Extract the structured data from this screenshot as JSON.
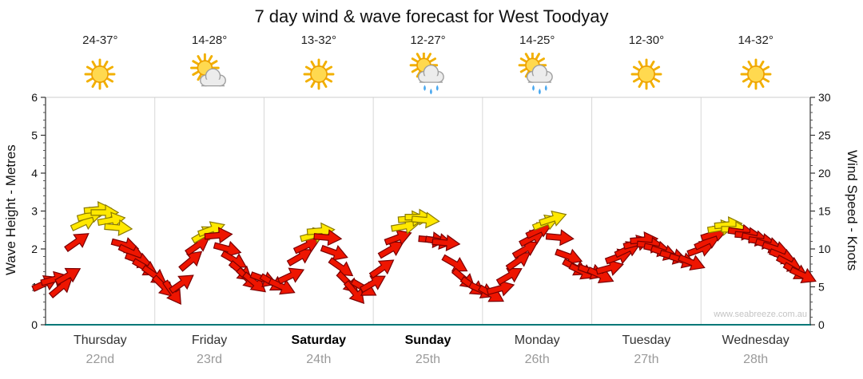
{
  "title": "7 day wind & wave forecast for West Toodyay",
  "watermark": "www.seabreeze.com.au",
  "days": [
    {
      "name": "Thursday",
      "date": "22nd",
      "temp": "24-37°",
      "icon": "sun",
      "bold": false
    },
    {
      "name": "Friday",
      "date": "23rd",
      "temp": "14-28°",
      "icon": "sun-cloud",
      "bold": false
    },
    {
      "name": "Saturday",
      "date": "24th",
      "temp": "13-32°",
      "icon": "sun",
      "bold": true
    },
    {
      "name": "Sunday",
      "date": "25th",
      "temp": "12-27°",
      "icon": "sun-rain",
      "bold": true
    },
    {
      "name": "Monday",
      "date": "26th",
      "temp": "14-25°",
      "icon": "sun-rain",
      "bold": false
    },
    {
      "name": "Tuesday",
      "date": "27th",
      "temp": "12-30°",
      "icon": "sun",
      "bold": false
    },
    {
      "name": "Wednesday",
      "date": "28th",
      "temp": "14-32°",
      "icon": "sun",
      "bold": false
    }
  ],
  "chart_data": {
    "type": "wind-arrows",
    "x_axis": {
      "unit": "hours",
      "range": [
        0,
        168
      ],
      "gridlines_per_day": true
    },
    "wave_axis": {
      "label": "Wave Height - Metres",
      "range": [
        0,
        6
      ],
      "ticks": [
        0,
        1,
        2,
        3,
        4,
        5,
        6
      ]
    },
    "wind_axis": {
      "label": "Wind Speed - Knots",
      "range": [
        0,
        30
      ],
      "ticks": [
        0,
        5,
        10,
        15,
        20,
        25,
        30
      ]
    },
    "arrow_colors": {
      "red": "#ee1500",
      "yellow": "#ffe800"
    },
    "arrow_outline": {
      "red": "#7a0000",
      "yellow": "#8a7a00"
    },
    "arrows": [
      [
        0,
        5.5,
        -25,
        "r"
      ],
      [
        2,
        6,
        -15,
        "r"
      ],
      [
        3.5,
        5,
        -40,
        "r"
      ],
      [
        5,
        6.5,
        -30,
        "r"
      ],
      [
        7,
        11,
        -35,
        "r"
      ],
      [
        8.5,
        13.5,
        -25,
        "y"
      ],
      [
        10,
        14.5,
        -15,
        "y"
      ],
      [
        11.5,
        15.2,
        -5,
        "y"
      ],
      [
        13,
        14.8,
        0,
        "y"
      ],
      [
        14.5,
        13.8,
        -10,
        "y"
      ],
      [
        16,
        12.8,
        5,
        "y"
      ],
      [
        17.5,
        10.5,
        15,
        "r"
      ],
      [
        19,
        9.5,
        25,
        "r"
      ],
      [
        20.5,
        8.5,
        20,
        "r"
      ],
      [
        22,
        7.5,
        30,
        "r"
      ],
      [
        24,
        6.5,
        35,
        "r"
      ],
      [
        26,
        5,
        45,
        "r"
      ],
      [
        28,
        4.2,
        55,
        "r"
      ],
      [
        30,
        5.5,
        -35,
        "r"
      ],
      [
        32,
        8.5,
        -40,
        "r"
      ],
      [
        33.5,
        10.5,
        -35,
        "r"
      ],
      [
        35,
        12,
        -30,
        "y"
      ],
      [
        36.5,
        12.6,
        -20,
        "y"
      ],
      [
        38,
        11.8,
        -5,
        "r"
      ],
      [
        40,
        10,
        15,
        "r"
      ],
      [
        41.5,
        8.5,
        30,
        "r"
      ],
      [
        43,
        7,
        40,
        "r"
      ],
      [
        44.5,
        6,
        45,
        "r"
      ],
      [
        46,
        5.5,
        40,
        "r"
      ],
      [
        48,
        6,
        20,
        "r"
      ],
      [
        50,
        5.5,
        30,
        "r"
      ],
      [
        52,
        5,
        25,
        "r"
      ],
      [
        54,
        6.5,
        -25,
        "r"
      ],
      [
        56,
        9,
        -30,
        "r"
      ],
      [
        57.5,
        10.5,
        -25,
        "r"
      ],
      [
        59,
        11.8,
        -15,
        "y"
      ],
      [
        60.5,
        12.4,
        -5,
        "y"
      ],
      [
        62,
        11.5,
        5,
        "r"
      ],
      [
        63.5,
        9.5,
        20,
        "r"
      ],
      [
        65,
        7.5,
        35,
        "r"
      ],
      [
        66.5,
        5.5,
        45,
        "r"
      ],
      [
        68,
        4.2,
        50,
        "r"
      ],
      [
        70,
        4.8,
        30,
        "r"
      ],
      [
        72,
        5.5,
        -30,
        "r"
      ],
      [
        74,
        7.5,
        -35,
        "r"
      ],
      [
        76,
        10,
        -30,
        "r"
      ],
      [
        77.5,
        11.5,
        -20,
        "r"
      ],
      [
        79,
        13,
        -10,
        "y"
      ],
      [
        80.5,
        14,
        -5,
        "y"
      ],
      [
        82,
        14.2,
        0,
        "y"
      ],
      [
        83.5,
        13.8,
        5,
        "y"
      ],
      [
        85,
        11.2,
        5,
        "r"
      ],
      [
        86.5,
        11,
        10,
        "r"
      ],
      [
        88,
        10.8,
        5,
        "r"
      ],
      [
        90,
        8,
        30,
        "r"
      ],
      [
        92,
        6,
        40,
        "r"
      ],
      [
        94,
        5,
        35,
        "r"
      ],
      [
        96,
        4.5,
        25,
        "r"
      ],
      [
        98,
        4,
        30,
        "r"
      ],
      [
        100,
        4.8,
        -15,
        "r"
      ],
      [
        102,
        6.5,
        -30,
        "r"
      ],
      [
        104,
        8.5,
        -35,
        "r"
      ],
      [
        105.5,
        10,
        -30,
        "r"
      ],
      [
        107,
        11.5,
        -28,
        "r"
      ],
      [
        108.5,
        12.5,
        -25,
        "r"
      ],
      [
        110,
        13.5,
        -22,
        "y"
      ],
      [
        111.5,
        14,
        -18,
        "y"
      ],
      [
        113,
        11.5,
        5,
        "r"
      ],
      [
        115,
        9,
        20,
        "r"
      ],
      [
        116.5,
        7.5,
        28,
        "r"
      ],
      [
        118,
        7,
        25,
        "r"
      ],
      [
        120,
        7,
        20,
        "r"
      ],
      [
        122,
        6.5,
        25,
        "r"
      ],
      [
        124,
        7.5,
        -15,
        "r"
      ],
      [
        126,
        9,
        -20,
        "r"
      ],
      [
        128,
        10,
        -25,
        "r"
      ],
      [
        130,
        10.8,
        -15,
        "r"
      ],
      [
        131.5,
        11.2,
        -5,
        "r"
      ],
      [
        133,
        10.5,
        5,
        "r"
      ],
      [
        134.5,
        10,
        12,
        "r"
      ],
      [
        136,
        9.5,
        18,
        "r"
      ],
      [
        138,
        9,
        15,
        "r"
      ],
      [
        140,
        8.5,
        18,
        "r"
      ],
      [
        142,
        8.2,
        22,
        "r"
      ],
      [
        144,
        10,
        -20,
        "r"
      ],
      [
        145.5,
        11,
        -25,
        "r"
      ],
      [
        147,
        12,
        -18,
        "r"
      ],
      [
        148.5,
        12.8,
        -10,
        "y"
      ],
      [
        150,
        13.2,
        -5,
        "y"
      ],
      [
        151.5,
        12.6,
        0,
        "y"
      ],
      [
        153,
        12.2,
        8,
        "r"
      ],
      [
        154.5,
        11.8,
        4,
        "r"
      ],
      [
        156,
        11.4,
        12,
        "r"
      ],
      [
        157.5,
        11,
        8,
        "r"
      ],
      [
        159,
        10.5,
        15,
        "r"
      ],
      [
        160.5,
        10,
        18,
        "r"
      ],
      [
        162,
        9,
        22,
        "r"
      ],
      [
        163.5,
        8,
        28,
        "r"
      ],
      [
        165,
        7,
        30,
        "r"
      ],
      [
        166.5,
        6.5,
        25,
        "r"
      ]
    ]
  }
}
